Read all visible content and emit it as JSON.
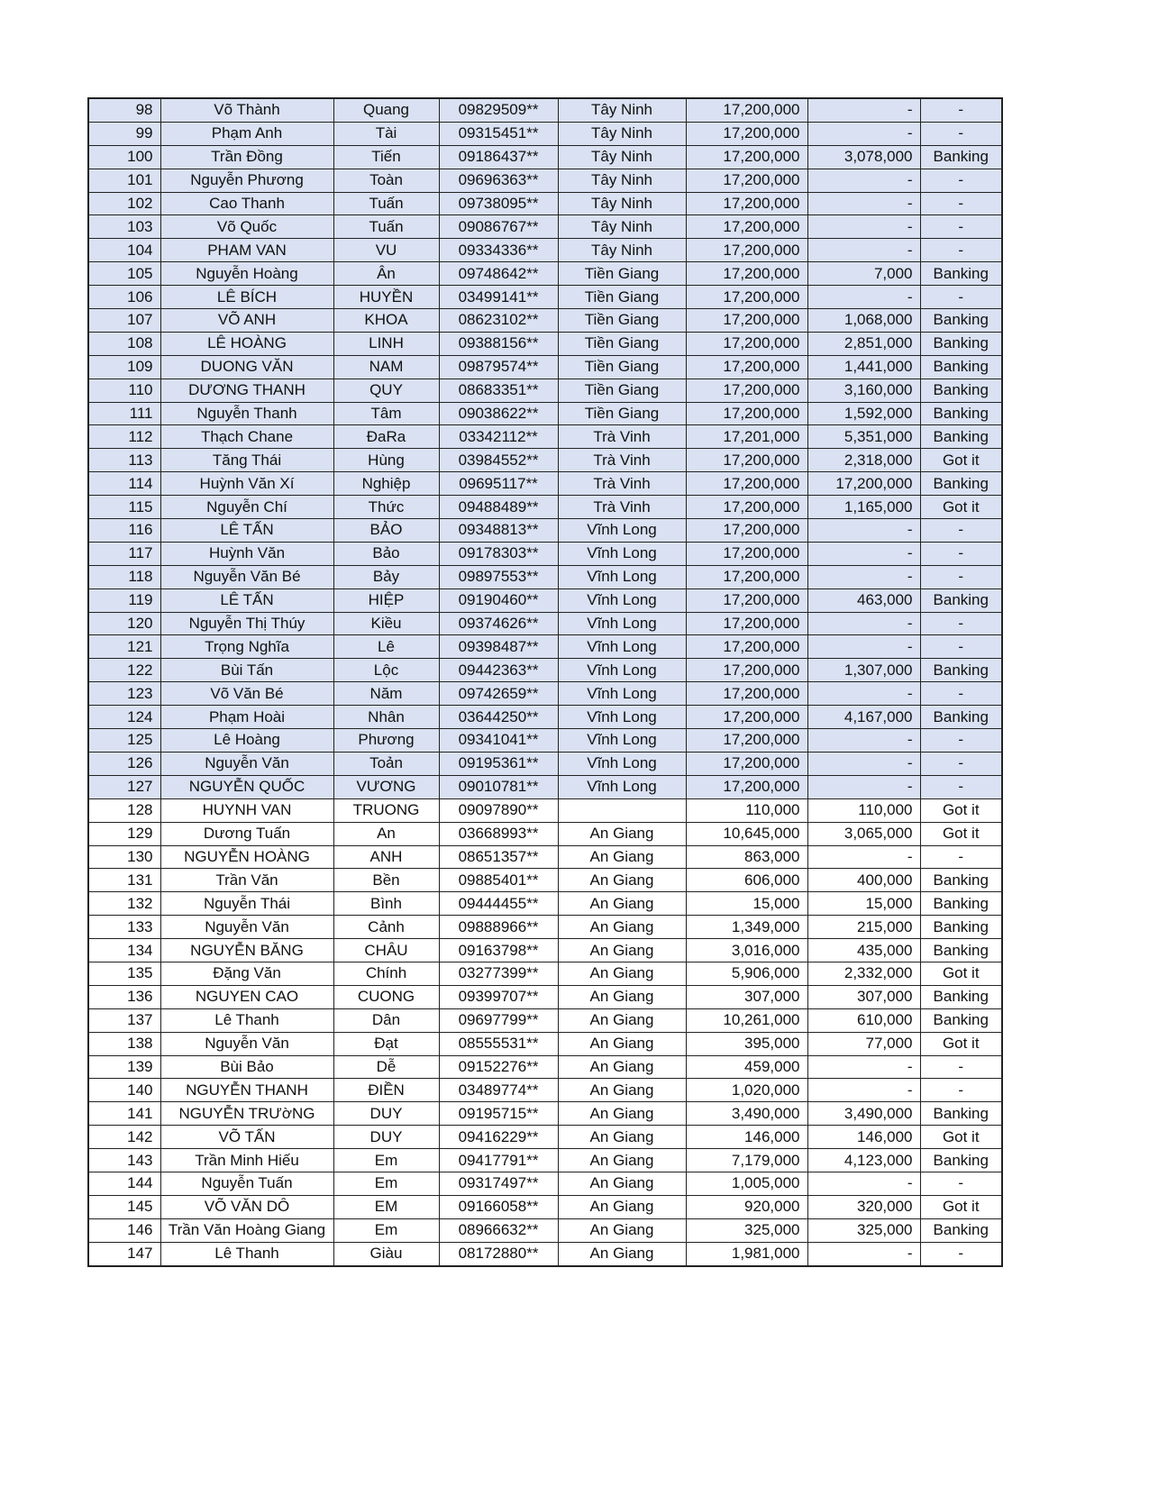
{
  "highlight_color": "#d9e1f2",
  "rows": [
    [
      "98",
      "Võ Thành",
      "Quang",
      "09829509**",
      "Tây Ninh",
      "17,200,000",
      "-",
      "-"
    ],
    [
      "99",
      "Phạm Anh",
      "Tài",
      "09315451**",
      "Tây Ninh",
      "17,200,000",
      "-",
      "-"
    ],
    [
      "100",
      "Trần Đồng",
      "Tiến",
      "09186437**",
      "Tây Ninh",
      "17,200,000",
      "3,078,000",
      "Banking"
    ],
    [
      "101",
      "Nguyễn Phương",
      "Toàn",
      "09696363**",
      "Tây Ninh",
      "17,200,000",
      "-",
      "-"
    ],
    [
      "102",
      "Cao Thanh",
      "Tuấn",
      "09738095**",
      "Tây Ninh",
      "17,200,000",
      "-",
      "-"
    ],
    [
      "103",
      "Võ Quốc",
      "Tuấn",
      "09086767**",
      "Tây Ninh",
      "17,200,000",
      "-",
      "-"
    ],
    [
      "104",
      "PHAM VAN",
      "VU",
      "09334336**",
      "Tây Ninh",
      "17,200,000",
      "-",
      "-"
    ],
    [
      "105",
      "Nguyễn Hoàng",
      "Ân",
      "09748642**",
      "Tiền Giang",
      "17,200,000",
      "7,000",
      "Banking"
    ],
    [
      "106",
      "LÊ BÍCH",
      "HUYỀN",
      "03499141**",
      "Tiền Giang",
      "17,200,000",
      "-",
      "-"
    ],
    [
      "107",
      "VÕ ANH",
      "KHOA",
      "08623102**",
      "Tiền Giang",
      "17,200,000",
      "1,068,000",
      "Banking"
    ],
    [
      "108",
      "LÊ HOÀNG",
      "LINH",
      "09388156**",
      "Tiền Giang",
      "17,200,000",
      "2,851,000",
      "Banking"
    ],
    [
      "109",
      "DUONG VĂN",
      "NAM",
      "09879574**",
      "Tiền Giang",
      "17,200,000",
      "1,441,000",
      "Banking"
    ],
    [
      "110",
      "DƯƠNG THANH",
      "QUY",
      "08683351**",
      "Tiền Giang",
      "17,200,000",
      "3,160,000",
      "Banking"
    ],
    [
      "111",
      "Nguyễn  Thanh",
      "Tâm",
      "09038622**",
      "Tiền Giang",
      "17,200,000",
      "1,592,000",
      "Banking"
    ],
    [
      "112",
      "Thạch Chane",
      "ĐaRa",
      "03342112**",
      "Trà Vinh",
      "17,201,000",
      "5,351,000",
      "Banking"
    ],
    [
      "113",
      "Tăng Thái",
      "Hùng",
      "03984552**",
      "Trà Vinh",
      "17,200,000",
      "2,318,000",
      "Got it"
    ],
    [
      "114",
      "Huỳnh Văn Xí",
      "Nghiệp",
      "09695117**",
      "Trà Vinh",
      "17,200,000",
      "17,200,000",
      "Banking"
    ],
    [
      "115",
      "Nguyễn Chí",
      "Thức",
      "09488489**",
      "Trà Vinh",
      "17,200,000",
      "1,165,000",
      "Got it"
    ],
    [
      "116",
      "LÊ TẤN",
      "BẢO",
      "09348813**",
      "Vĩnh Long",
      "17,200,000",
      "-",
      "-"
    ],
    [
      "117",
      "Huỳnh Văn",
      "Bảo",
      "09178303**",
      "Vĩnh Long",
      "17,200,000",
      "-",
      "-"
    ],
    [
      "118",
      "Nguyễn Văn Bé",
      "Bảy",
      "09897553**",
      "Vĩnh Long",
      "17,200,000",
      "-",
      "-"
    ],
    [
      "119",
      "LÊ TẤN",
      "HIỆP",
      "09190460**",
      "Vĩnh Long",
      "17,200,000",
      "463,000",
      "Banking"
    ],
    [
      "120",
      "Nguyễn Thị Thúy",
      "Kiều",
      "09374626**",
      "Vĩnh Long",
      "17,200,000",
      "-",
      "-"
    ],
    [
      "121",
      "Trọng Nghĩa",
      "Lê",
      "09398487**",
      "Vĩnh Long",
      "17,200,000",
      "-",
      "-"
    ],
    [
      "122",
      "Bùi Tấn",
      "Lộc",
      "09442363**",
      "Vĩnh Long",
      "17,200,000",
      "1,307,000",
      "Banking"
    ],
    [
      "123",
      "Võ Văn Bé",
      "Năm",
      "09742659**",
      "Vĩnh Long",
      "17,200,000",
      "-",
      "-"
    ],
    [
      "124",
      "Phạm Hoài",
      "Nhân",
      "03644250**",
      "Vĩnh Long",
      "17,200,000",
      "4,167,000",
      "Banking"
    ],
    [
      "125",
      "Lê Hoàng",
      "Phương",
      "09341041**",
      "Vĩnh Long",
      "17,200,000",
      "-",
      "-"
    ],
    [
      "126",
      "Nguyễn Văn",
      "Toản",
      "09195361**",
      "Vĩnh Long",
      "17,200,000",
      "-",
      "-"
    ],
    [
      "127",
      "NGUYỄN QUỐC",
      "VƯƠNG",
      "09010781**",
      "Vĩnh Long",
      "17,200,000",
      "-",
      "-"
    ],
    [
      "128",
      "HUYNH VAN",
      "TRUONG",
      "09097890**",
      "",
      "110,000",
      "110,000",
      "Got it"
    ],
    [
      "129",
      "Dương Tuấn",
      "An",
      "03668993**",
      "An Giang",
      "10,645,000",
      "3,065,000",
      "Got it"
    ],
    [
      "130",
      "NGUYỄN HOÀNG",
      "ANH",
      "08651357**",
      "An Giang",
      "863,000",
      "-",
      "-"
    ],
    [
      "131",
      "Trần Văn",
      "Bền",
      "09885401**",
      "An Giang",
      "606,000",
      "400,000",
      "Banking"
    ],
    [
      "132",
      "Nguyễn Thái",
      "Bình",
      "09444455**",
      "An Giang",
      "15,000",
      "15,000",
      "Banking"
    ],
    [
      "133",
      "Nguyễn Văn",
      "Cảnh",
      "09888966**",
      "An Giang",
      "1,349,000",
      "215,000",
      "Banking"
    ],
    [
      "134",
      "NGUYỄN BĂNG",
      "CHÂU",
      "09163798**",
      "An Giang",
      "3,016,000",
      "435,000",
      "Banking"
    ],
    [
      "135",
      "Đặng Văn",
      "Chính",
      "03277399**",
      "An Giang",
      "5,906,000",
      "2,332,000",
      "Got it"
    ],
    [
      "136",
      "NGUYEN CAO",
      "CUONG",
      "09399707**",
      "An Giang",
      "307,000",
      "307,000",
      "Banking"
    ],
    [
      "137",
      "Lê Thanh",
      "Dân",
      "09697799**",
      "An Giang",
      "10,261,000",
      "610,000",
      "Banking"
    ],
    [
      "138",
      "Nguyễn Văn",
      "Đạt",
      "08555531**",
      "An Giang",
      "395,000",
      "77,000",
      "Got it"
    ],
    [
      "139",
      "Bùi Bảo",
      "Dễ",
      "09152276**",
      "An Giang",
      "459,000",
      "-",
      "-"
    ],
    [
      "140",
      "NGUYỄN THANH",
      "ĐIỀN",
      "03489774**",
      "An Giang",
      "1,020,000",
      "-",
      "-"
    ],
    [
      "141",
      "NGUYỄN TRƯờNG",
      "DUY",
      "09195715**",
      "An Giang",
      "3,490,000",
      "3,490,000",
      "Banking"
    ],
    [
      "142",
      "VÕ TẤN",
      "DUY",
      "09416229**",
      "An Giang",
      "146,000",
      "146,000",
      "Got it"
    ],
    [
      "143",
      "Trần Minh Hiếu",
      "Em",
      "09417791**",
      "An Giang",
      "7,179,000",
      "4,123,000",
      "Banking"
    ],
    [
      "144",
      "Nguyễn Tuấn",
      "Em",
      "09317497**",
      "An Giang",
      "1,005,000",
      "-",
      "-"
    ],
    [
      "145",
      "VÕ VĂN DÔ",
      "EM",
      "09166058**",
      "An Giang",
      "920,000",
      "320,000",
      "Got it"
    ],
    [
      "146",
      "Trần Văn Hoàng Giang",
      "Em",
      "08966632**",
      "An Giang",
      "325,000",
      "325,000",
      "Banking"
    ],
    [
      "147",
      "Lê Thanh",
      "Giàu",
      "08172880**",
      "An Giang",
      "1,981,000",
      "-",
      "-"
    ]
  ],
  "highlighted_through_no": "127"
}
